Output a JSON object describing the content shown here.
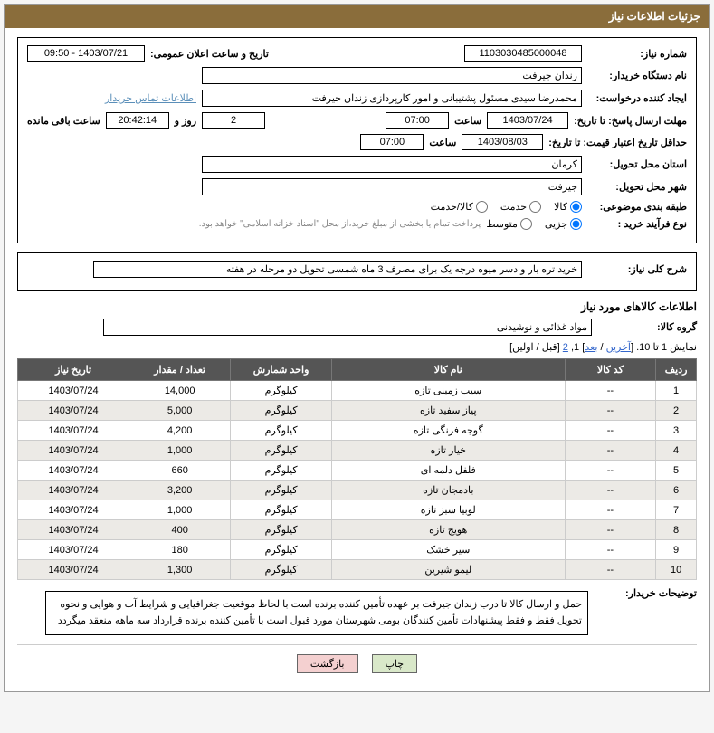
{
  "header": {
    "title": "جزئیات اطلاعات نیاز"
  },
  "form": {
    "need_no_label": "شماره نیاز:",
    "need_no": "1103030485000048",
    "announce_label": "تاریخ و ساعت اعلان عمومی:",
    "announce_value": "1403/07/21 - 09:50",
    "buyer_org_label": "نام دستگاه خریدار:",
    "buyer_org": "زندان جیرفت",
    "requester_label": "ایجاد کننده درخواست:",
    "requester": "محمدرضا سیدی مسئول پشتیبانی و امور کارپردازی زندان جیرفت",
    "contact_link": "اطلاعات تماس خریدار",
    "deadline_label": "مهلت ارسال پاسخ:",
    "until_label": "تا تاریخ:",
    "deadline_date": "1403/07/24",
    "time_label": "ساعت",
    "deadline_time": "07:00",
    "remain_days": "2",
    "days_and": "روز و",
    "remain_time": "20:42:14",
    "remain_suffix": "ساعت باقی مانده",
    "validity_label": "حداقل تاریخ اعتبار قیمت:",
    "validity_date": "1403/08/03",
    "validity_time": "07:00",
    "province_label": "استان محل تحویل:",
    "province": "کرمان",
    "city_label": "شهر محل تحویل:",
    "city": "جیرفت",
    "category_label": "طبقه بندی موضوعی:",
    "cat_goods": "کالا",
    "cat_service": "خدمت",
    "cat_both": "کالا/خدمت",
    "process_label": "نوع فرآیند خرید :",
    "proc_small": "جزیی",
    "proc_medium": "متوسط",
    "payment_note": "پرداخت تمام یا بخشی از مبلغ خرید،از محل \"اسناد خزانه اسلامی\" خواهد بود."
  },
  "summary": {
    "label": "شرح کلی نیاز:",
    "text": "خرید تره بار و دسر میوه درجه یک برای مصرف 3 ماه شمسی تحویل دو مرحله در هفته"
  },
  "goods_section_title": "اطلاعات کالاهای مورد نیاز",
  "group": {
    "label": "گروه کالا:",
    "value": "مواد غذائی و نوشیدنی"
  },
  "pager": {
    "prefix": "نمایش 1 تا 10. [",
    "last": "آخرین",
    "sep": " / ",
    "next": "بعد",
    "mid": "] 1, ",
    "p2": "2",
    "suffix": " [قبل / اولین]"
  },
  "table": {
    "headers": {
      "row": "ردیف",
      "code": "کد کالا",
      "name": "نام کالا",
      "unit": "واحد شمارش",
      "qty": "تعداد / مقدار",
      "date": "تاریخ نیاز"
    },
    "rows": [
      {
        "n": "1",
        "code": "--",
        "name": "سیب زمینی تازه",
        "unit": "کیلوگرم",
        "qty": "14,000",
        "date": "1403/07/24"
      },
      {
        "n": "2",
        "code": "--",
        "name": "پیاز سفید تازه",
        "unit": "کیلوگرم",
        "qty": "5,000",
        "date": "1403/07/24"
      },
      {
        "n": "3",
        "code": "--",
        "name": "گوجه فرنگی تازه",
        "unit": "کیلوگرم",
        "qty": "4,200",
        "date": "1403/07/24"
      },
      {
        "n": "4",
        "code": "--",
        "name": "خیار تازه",
        "unit": "کیلوگرم",
        "qty": "1,000",
        "date": "1403/07/24"
      },
      {
        "n": "5",
        "code": "--",
        "name": "فلفل دلمه ای",
        "unit": "کیلوگرم",
        "qty": "660",
        "date": "1403/07/24"
      },
      {
        "n": "6",
        "code": "--",
        "name": "بادمجان تازه",
        "unit": "کیلوگرم",
        "qty": "3,200",
        "date": "1403/07/24"
      },
      {
        "n": "7",
        "code": "--",
        "name": "لوبیا سبز تازه",
        "unit": "کیلوگرم",
        "qty": "1,000",
        "date": "1403/07/24"
      },
      {
        "n": "8",
        "code": "--",
        "name": "هویج تازه",
        "unit": "کیلوگرم",
        "qty": "400",
        "date": "1403/07/24"
      },
      {
        "n": "9",
        "code": "--",
        "name": "سیر خشک",
        "unit": "کیلوگرم",
        "qty": "180",
        "date": "1403/07/24"
      },
      {
        "n": "10",
        "code": "--",
        "name": "لیمو شیرین",
        "unit": "کیلوگرم",
        "qty": "1,300",
        "date": "1403/07/24"
      }
    ]
  },
  "buyer_desc": {
    "label": "توضیحات خریدار:",
    "text": "حمل و ارسال کالا تا درب زندان جیرفت بر عهده تأمین کننده برنده است با لحاظ موقعیت جغرافیایی و شرایط آب و هوایی و نحوه تحویل فقط و فقط پیشنهادات تأمین کنندگان بومی شهرستان مورد قبول است با تأمین کننده برنده قرارداد سه ماهه منعقد میگردد"
  },
  "buttons": {
    "print": "چاپ",
    "back": "بازگشت"
  },
  "colors": {
    "header_bg": "#8a6d3b",
    "th_bg": "#555555",
    "row_alt": "#eceae6",
    "link": "#5b8fb9"
  }
}
